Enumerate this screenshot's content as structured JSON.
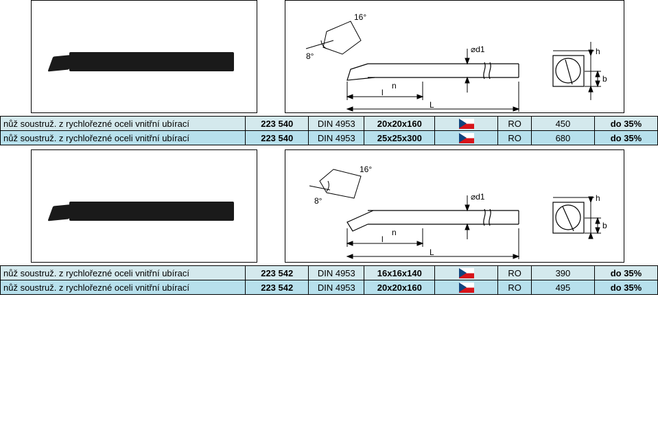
{
  "rows_top": [
    {
      "desc": "nůž soustruž. z rychlořezné oceli vnitřní ubírací",
      "code": "223 540",
      "din": "DIN 4953",
      "size": "20x20x160",
      "stk": "RO",
      "price": "450",
      "pct": "do 35%",
      "rowClass": "row-light"
    },
    {
      "desc": "nůž soustruž. z rychlořezné oceli vnitřní ubírací",
      "code": "223 540",
      "din": "DIN 4953",
      "size": "25x25x300",
      "stk": "RO",
      "price": "680",
      "pct": "do 35%",
      "rowClass": "row-dark"
    }
  ],
  "rows_bottom": [
    {
      "desc": "nůž soustruž. z rychlořezné oceli vnitřní ubírací",
      "code": "223 542",
      "din": "DIN 4953",
      "size": "16x16x140",
      "stk": "RO",
      "price": "390",
      "pct": "do 35%",
      "rowClass": "row-light"
    },
    {
      "desc": "nůž soustruž. z rychlořezné oceli vnitřní ubírací",
      "code": "223 542",
      "din": "DIN 4953",
      "size": "20x20x160",
      "stk": "RO",
      "price": "495",
      "pct": "do 35%",
      "rowClass": "row-dark"
    }
  ],
  "drawing_labels": {
    "angle_top": "16°",
    "angle_side": "8°",
    "dim_L": "L",
    "dim_l": "l",
    "dim_n": "n",
    "dim_d1": "⌀d1",
    "dim_h": "h",
    "dim_b": "b"
  }
}
